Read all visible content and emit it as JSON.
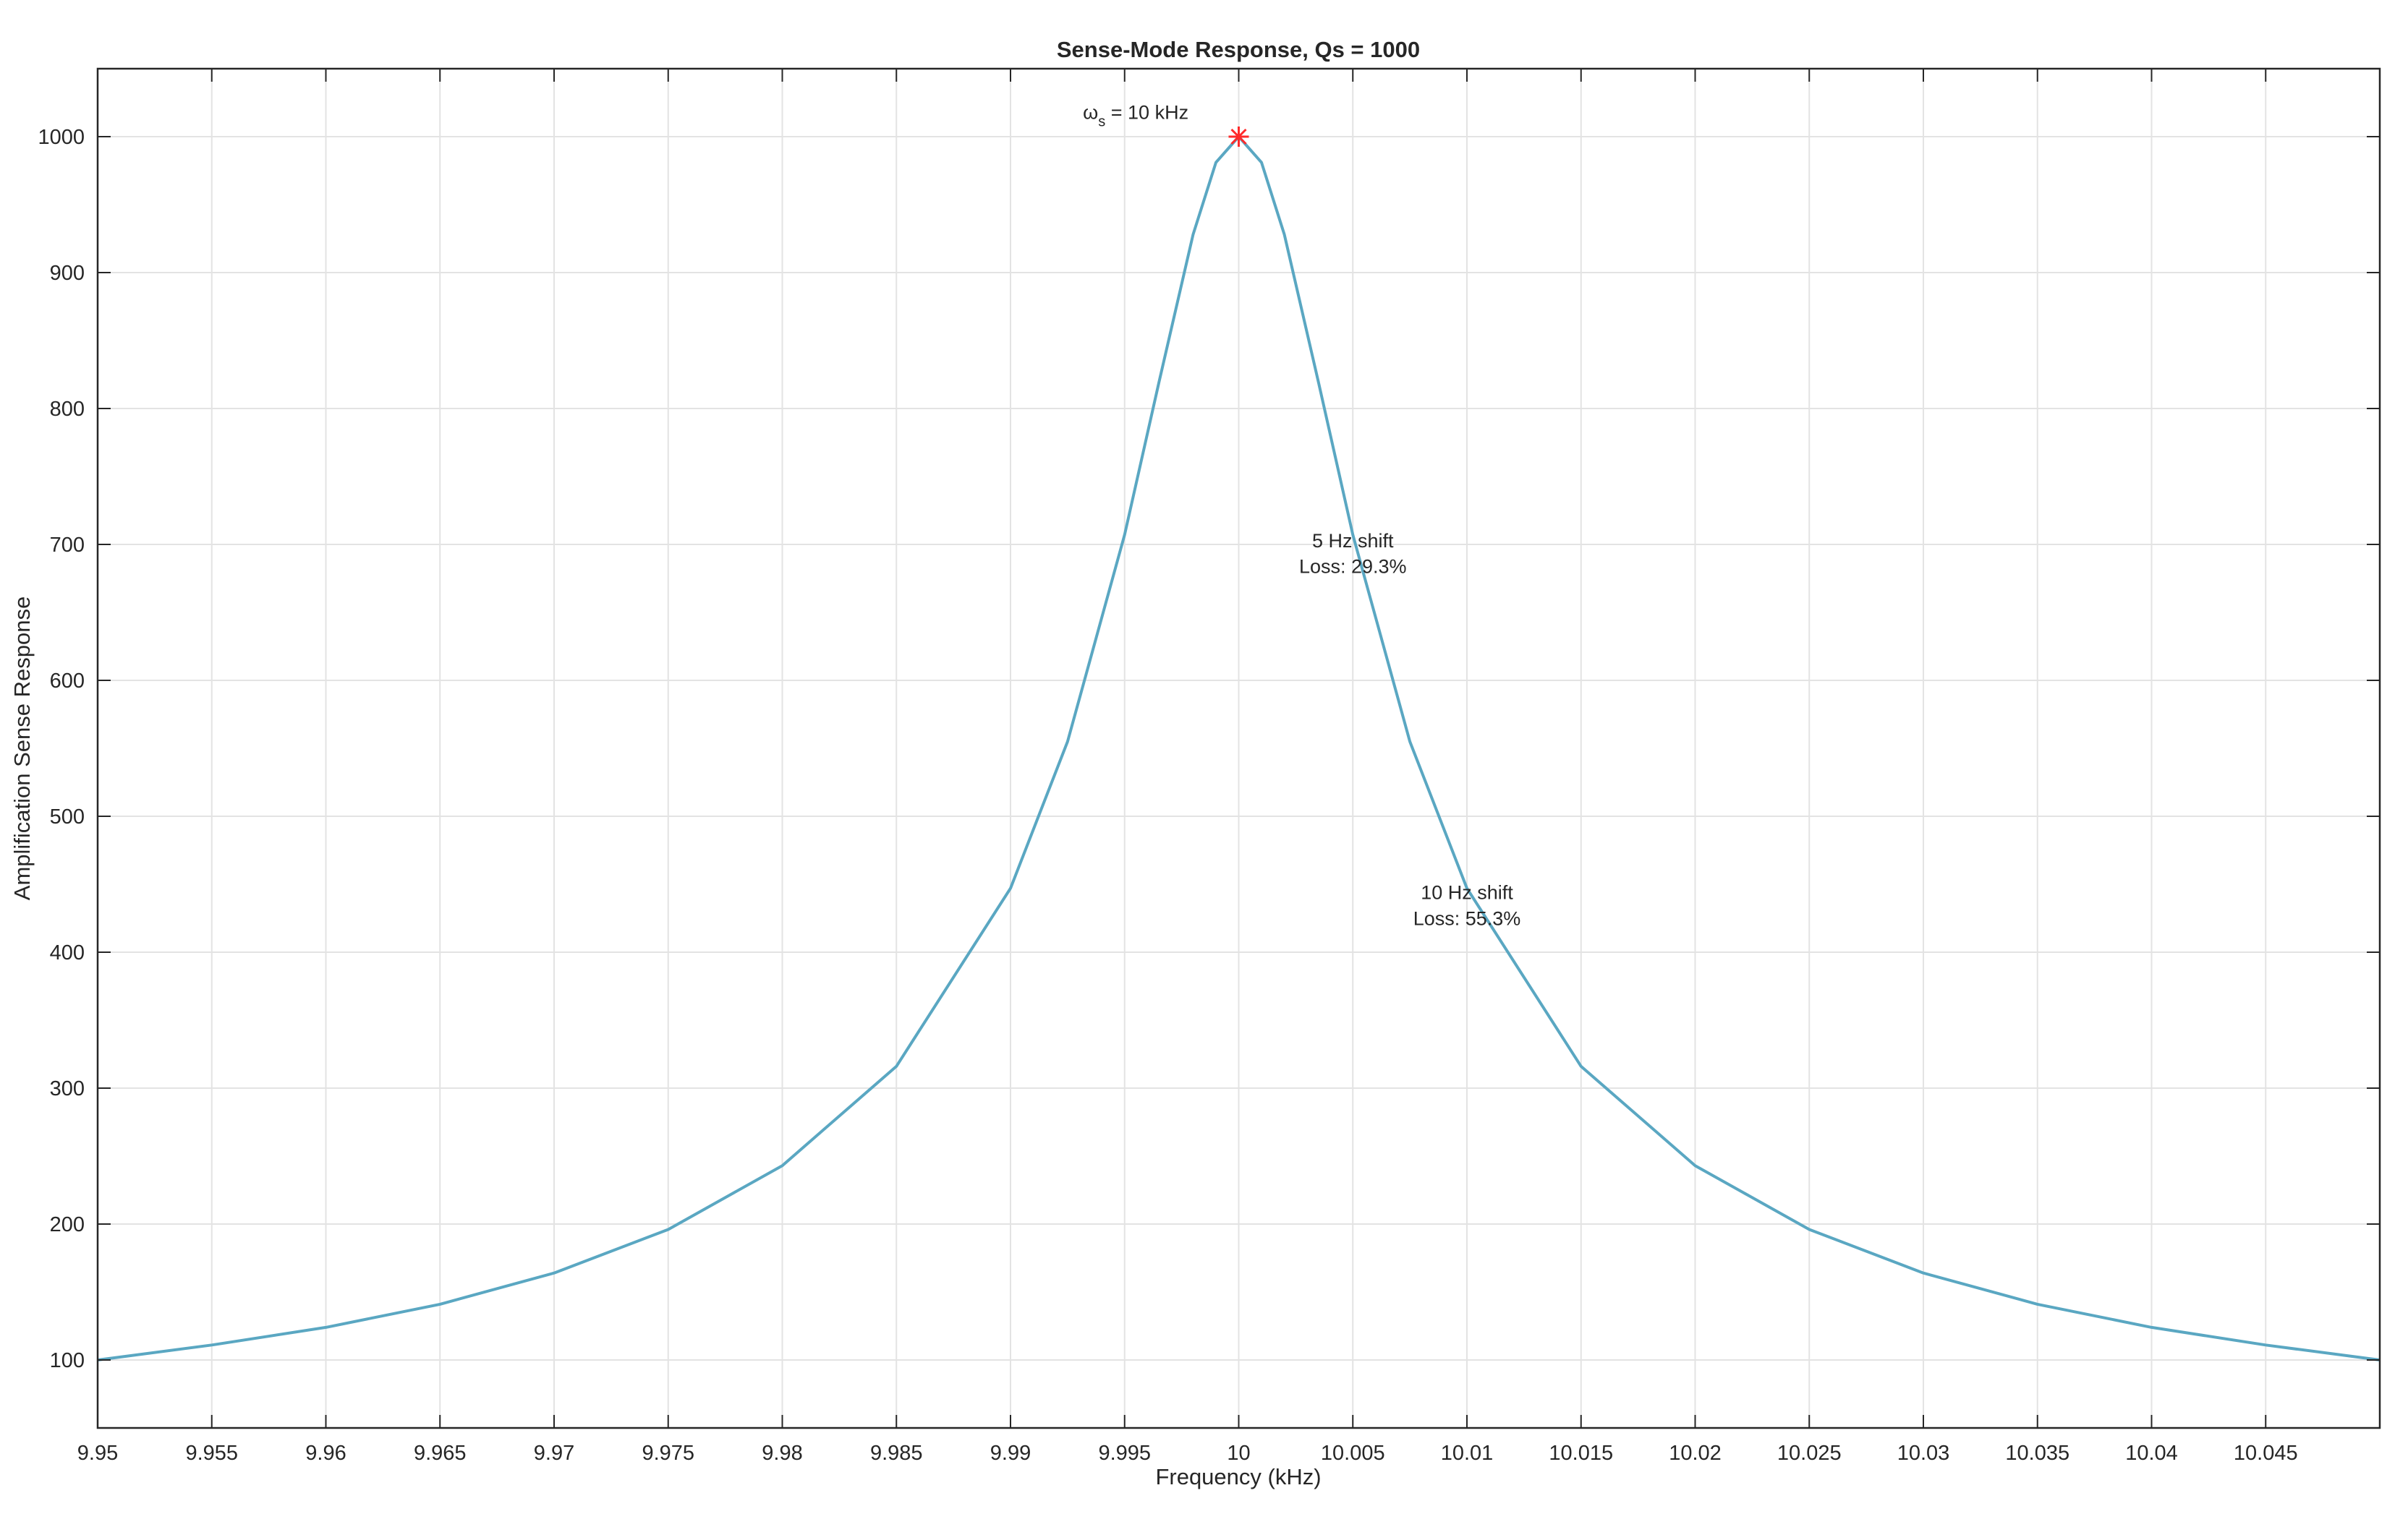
{
  "chart_data": {
    "type": "line",
    "title": "Sense-Mode Response, Qs = 1000",
    "xlabel": "Frequency (kHz)",
    "ylabel": "Amplification Sense Response",
    "xlim": [
      9.95,
      10.05
    ],
    "ylim": [
      50,
      1050
    ],
    "grid": true,
    "legend": "none",
    "xticks": [
      9.95,
      9.955,
      9.96,
      9.965,
      9.97,
      9.975,
      9.98,
      9.985,
      9.99,
      9.995,
      10,
      10.005,
      10.01,
      10.015,
      10.02,
      10.025,
      10.03,
      10.035,
      10.04,
      10.045
    ],
    "xtick_labels": [
      "9.95",
      "9.955",
      "9.96",
      "9.965",
      "9.97",
      "9.975",
      "9.98",
      "9.985",
      "9.99",
      "9.995",
      "10",
      "10.005",
      "10.01",
      "10.015",
      "10.02",
      "10.025",
      "10.03",
      "10.035",
      "10.04",
      "10.045"
    ],
    "yticks": [
      100,
      200,
      300,
      400,
      500,
      600,
      700,
      800,
      900,
      1000
    ],
    "ytick_labels": [
      "100",
      "200",
      "300",
      "400",
      "500",
      "600",
      "700",
      "800",
      "900",
      "1000"
    ],
    "series": [
      {
        "color": "#5aa7c2",
        "x": [
          9.95,
          9.955,
          9.96,
          9.965,
          9.97,
          9.975,
          9.98,
          9.985,
          9.99,
          9.9925,
          9.995,
          9.9965,
          9.998,
          9.999,
          10,
          10.001,
          10.002,
          10.0035,
          10.005,
          10.0075,
          10.01,
          10.015,
          10.02,
          10.025,
          10.03,
          10.035,
          10.04,
          10.045,
          10.05
        ],
        "y": [
          100,
          111,
          124,
          141,
          164,
          196,
          243,
          316,
          447,
          555,
          707,
          819,
          928,
          981,
          1000,
          981,
          928,
          819,
          707,
          555,
          447,
          316,
          243,
          196,
          164,
          141,
          124,
          111,
          100
        ]
      }
    ],
    "peak_marker": {
      "x": 10,
      "y": 1000,
      "color": "#ff2a2a"
    },
    "annotations": [
      {
        "id": "peak",
        "symbol": "ω",
        "subscript": "s",
        "text": " = 10 kHz",
        "x": 9.9978,
        "y": 1013
      },
      {
        "id": "shift5",
        "lines": [
          "5 Hz shift",
          "Loss: 29.3%"
        ],
        "x": 10.005,
        "y": 698,
        "y2": 679
      },
      {
        "id": "shift10",
        "lines": [
          "10 Hz shift",
          "Loss: 55.3%"
        ],
        "x": 10.01,
        "y": 439,
        "y2": 420
      }
    ]
  }
}
